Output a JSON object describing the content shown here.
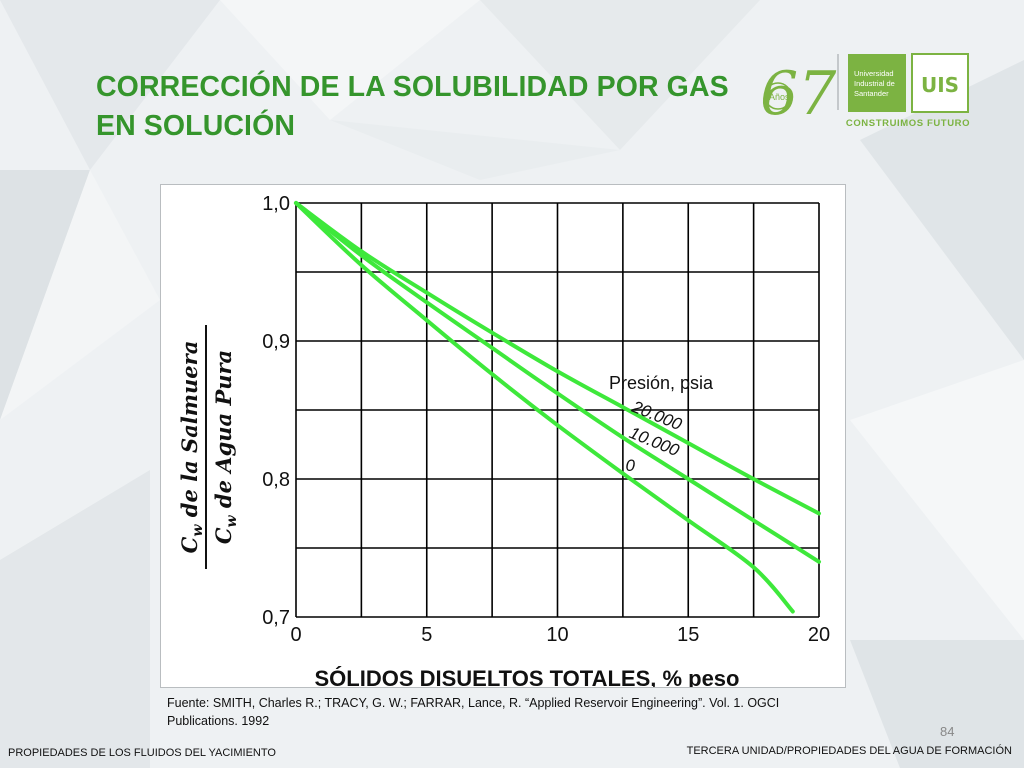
{
  "slide": {
    "title_line1": "CORRECCIÓN DE LA SOLUBILIDAD POR GAS",
    "title_line2": "EN SOLUCIÓN",
    "page_number": "84",
    "footer_left": "PROPIEDADES DE LOS FLUIDOS DEL YACIMIENTO",
    "footer_right": "TERCERA UNIDAD/PROPIEDADES DEL AGUA DE FORMACIÓN",
    "source_line1": "Fuente: SMITH, Charles R.; TRACY, G. W.; FARRAR, Lance, R. “Applied Reservoir Engineering”. Vol. 1. OGCI",
    "source_line2": "Publications. 1992"
  },
  "logo": {
    "anniversary": "67",
    "anos": "Años",
    "uis_lines": [
      "Universidad",
      "Industrial de",
      "Santander"
    ],
    "uis_mark": "UIS",
    "tagline": "CONSTRUIMOS FUTURO",
    "brand_color": "#7cb342"
  },
  "chart_data": {
    "type": "line",
    "xlabel": "SÓLIDOS DISUELTOS TOTALES, % peso",
    "ylabel_numerator": "C",
    "ylabel_numerator_sub": "w",
    "ylabel_numerator_rest": " de la Salmuera",
    "ylabel_denominator": "C",
    "ylabel_denominator_sub": "w",
    "ylabel_denominator_rest": " de Agua Pura",
    "xlim": [
      0,
      20
    ],
    "ylim": [
      0.7,
      1.0
    ],
    "grid": true,
    "x_ticks": [
      {
        "value": 0,
        "label": "0"
      },
      {
        "value": 5,
        "label": "5"
      },
      {
        "value": 10,
        "label": "10"
      },
      {
        "value": 15,
        "label": "15"
      },
      {
        "value": 20,
        "label": "20"
      }
    ],
    "y_ticks": [
      {
        "value": 1.0,
        "label": "1,0"
      },
      {
        "value": 0.9,
        "label": "0,9"
      },
      {
        "value": 0.8,
        "label": "0,8"
      },
      {
        "value": 0.7,
        "label": "0,7"
      }
    ],
    "legend_title": "Presión, psia",
    "line_color": "#3ee83b",
    "series": [
      {
        "name": "20.000",
        "x": [
          0,
          2.5,
          5,
          7.5,
          10,
          12.5,
          15,
          17.5,
          20
        ],
        "y": [
          1.0,
          0.965,
          0.935,
          0.906,
          0.878,
          0.852,
          0.826,
          0.8,
          0.775
        ]
      },
      {
        "name": "10.000",
        "x": [
          0,
          2.5,
          5,
          7.5,
          10,
          12.5,
          15,
          17.5,
          20
        ],
        "y": [
          1.0,
          0.962,
          0.928,
          0.895,
          0.862,
          0.83,
          0.8,
          0.77,
          0.74
        ]
      },
      {
        "name": "0",
        "x": [
          0,
          2.5,
          5,
          7.5,
          10,
          12.5,
          15,
          17.5,
          19
        ],
        "y": [
          1.0,
          0.955,
          0.915,
          0.876,
          0.839,
          0.804,
          0.77,
          0.736,
          0.704
        ]
      }
    ]
  }
}
